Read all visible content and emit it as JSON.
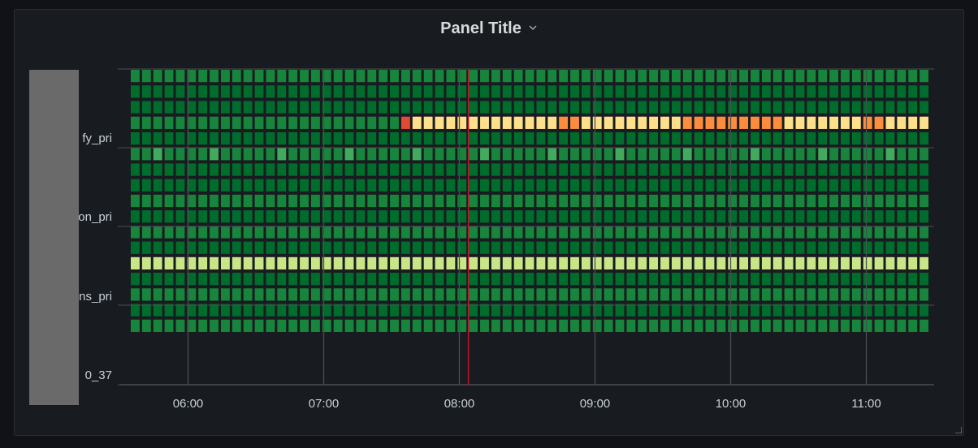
{
  "panel": {
    "title": "Panel Title",
    "menu_icon": "chevron-down-icon",
    "resize_icon": "resize-handle-icon"
  },
  "colors": {
    "background": "#111217",
    "panel": "#181b1f",
    "grid": "#4b4e54",
    "time_marker": "#c4162a",
    "redaction": "#6a6a6a",
    "scale": [
      "#006d2c",
      "#17853c",
      "#41ab5d",
      "#8ac85a",
      "#c9e587",
      "#fee08b",
      "#fd8d3c",
      "#e34a33",
      "#a50f15"
    ]
  },
  "chart_data": {
    "type": "heatmap",
    "x_ticks": [
      "06:00",
      "07:00",
      "08:00",
      "09:00",
      "10:00",
      "11:00"
    ],
    "x_range": [
      "05:30",
      "11:30"
    ],
    "y_tick_labels": [
      "fy_pri",
      "on_pri",
      "ns_pri",
      "0_37"
    ],
    "columns": 71,
    "rows": 17,
    "time_marker": "08:04",
    "values": [
      "11111111111111111111111111111111111111111111111111111111111111111111111",
      "00000000000000000000000000000000000000000000000000000000000000000000000",
      "00000000000000000000000000000000000000000000000000000000000000000000000",
      "11111111111111111111111175555555555555665555555556666666665555555665555",
      "00000000000000000000000000000000000000000000000000000000000000000000000",
      "11211112111112111112111112111112111112111112111112111112111112111112111",
      "00000000000000000000000000000000000000000000000000000000000000000000000",
      "00000000000000000000000000000000000000000000000000000000000000000000000",
      "11111111111111111111111111111111111111111111111111111111111111111111111",
      "00000000000000000000000000000000000000000000000000000000000000000000000",
      "11111111111111111111111111111111111111111111111111111111111111111111111",
      "00000000000000000000000000000000000000000000000000000000000000000000000",
      "44444444444444444444444444444444444444444444444444444444444444444444444",
      "00000000000000000000000000000000000000000000000000000000000000000000000",
      "11111111111111111111111111111111111111111111111111111111111111111111111",
      "00000000000000000000000000000000000000000000000000000000000000000000000",
      "11111111111111111111111111111111111111111111111111111111111111111111111"
    ]
  }
}
